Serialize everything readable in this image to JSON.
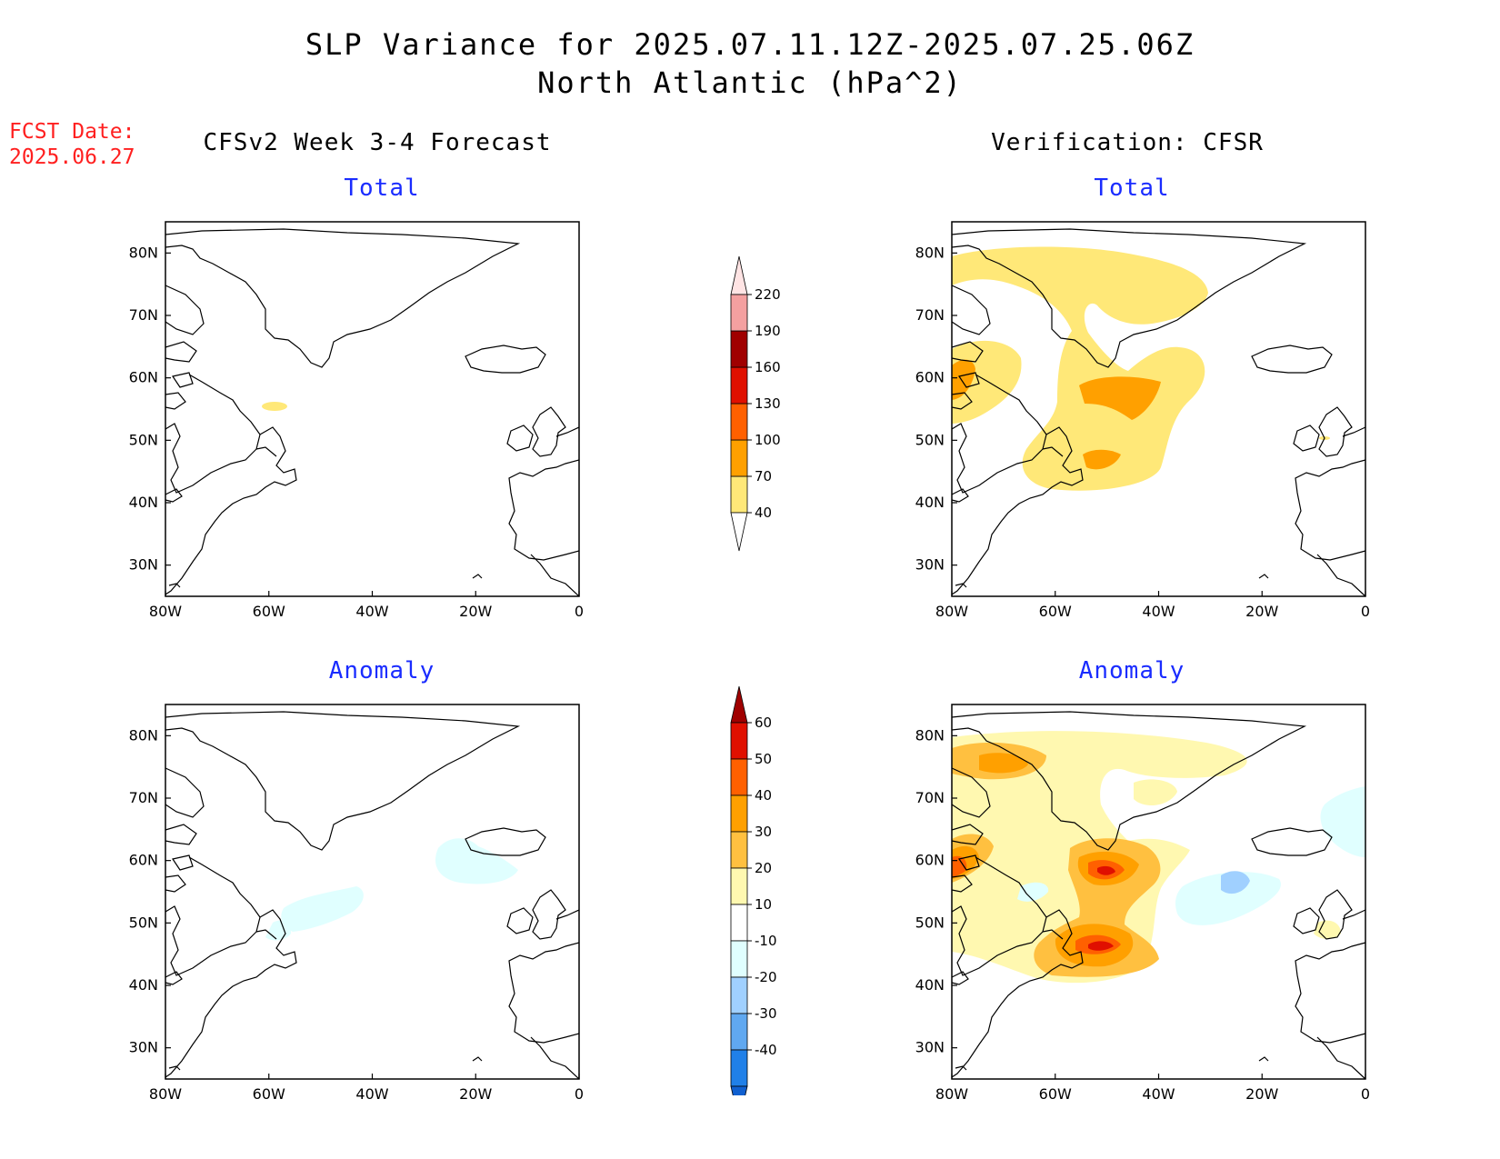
{
  "header": {
    "title_line1": "SLP Variance for 2025.07.11.12Z-2025.07.25.06Z",
    "title_line2": "North Atlantic (hPa^2)"
  },
  "fcst_date": {
    "label": "FCST Date:",
    "value": "2025.06.27"
  },
  "columns": {
    "left": "CFSv2 Week 3-4 Forecast",
    "right": "Verification: CFSR"
  },
  "panel_titles": {
    "total": "Total",
    "anomaly": "Anomaly"
  },
  "map_axes": {
    "lon_ticks": [
      "80W",
      "60W",
      "40W",
      "20W",
      "0"
    ],
    "lat_ticks": [
      "80N",
      "70N",
      "60N",
      "50N",
      "40N",
      "30N"
    ],
    "lon_range": [
      -80,
      0
    ],
    "lat_range": [
      25,
      85
    ]
  },
  "colorbars": {
    "total": {
      "levels": [
        "40",
        "70",
        "100",
        "130",
        "160",
        "190",
        "220"
      ],
      "colors": [
        "#ffe878",
        "#ffa000",
        "#ff6000",
        "#e01000",
        "#a00000",
        "#f4a0a0",
        "#ffe4e4"
      ]
    },
    "anomaly": {
      "levels": [
        "60",
        "50",
        "40",
        "30",
        "20",
        "10",
        "-10",
        "-20",
        "-30",
        "-40"
      ],
      "colors_top_down": [
        "#a00000",
        "#e01000",
        "#ff6000",
        "#ffa000",
        "#ffc040",
        "#fff8b0",
        "#ffffff",
        "#e0ffff",
        "#a0d0ff",
        "#60a8f0",
        "#2080e8",
        "#1060d0"
      ]
    }
  }
}
